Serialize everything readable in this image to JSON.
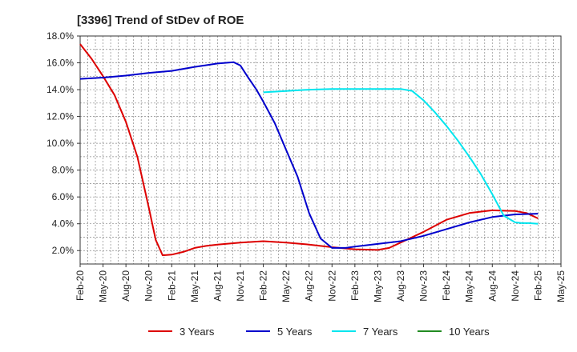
{
  "chart_data": {
    "type": "line",
    "title": "[3396]  Trend of StDev of ROE",
    "xlabel": "",
    "ylabel": "",
    "x_ticks": [
      "Feb-20",
      "May-20",
      "Aug-20",
      "Nov-20",
      "Feb-21",
      "May-21",
      "Aug-21",
      "Nov-21",
      "Feb-22",
      "May-22",
      "Aug-22",
      "Nov-22",
      "Feb-23",
      "May-23",
      "Aug-23",
      "Nov-23",
      "Feb-24",
      "May-24",
      "Aug-24",
      "Nov-24",
      "Feb-25",
      "May-25"
    ],
    "y_ticks": [
      "2.0%",
      "4.0%",
      "6.0%",
      "8.0%",
      "10.0%",
      "12.0%",
      "14.0%",
      "16.0%",
      "18.0%"
    ],
    "ylim": [
      1.0,
      18.0
    ],
    "grid": true,
    "legend_position": "bottom",
    "x_quarters_note": "x values are quarter indices matching x_ticks order",
    "series": [
      {
        "name": "3 Years",
        "color": "#dd0000",
        "x": [
          0,
          0.5,
          1,
          1.5,
          2,
          2.5,
          3,
          3.3,
          3.6,
          4,
          4.5,
          5,
          5.5,
          6,
          7,
          8,
          9,
          10,
          11,
          12,
          13,
          13.5,
          14,
          15,
          16,
          17,
          18,
          19,
          19.5,
          20
        ],
        "y": [
          17.4,
          16.3,
          15.0,
          13.6,
          11.6,
          9.0,
          5.2,
          2.8,
          1.65,
          1.7,
          1.9,
          2.2,
          2.35,
          2.45,
          2.6,
          2.7,
          2.6,
          2.45,
          2.25,
          2.1,
          2.05,
          2.2,
          2.6,
          3.4,
          4.3,
          4.8,
          5.0,
          4.95,
          4.8,
          4.4
        ]
      },
      {
        "name": "5 Years",
        "color": "#0000cc",
        "x": [
          0,
          1,
          2,
          3,
          4,
          5,
          6,
          6.7,
          7,
          7.3,
          7.7,
          8,
          8.5,
          9,
          9.5,
          10,
          10.5,
          11,
          11.3,
          11.6,
          12,
          13,
          14,
          15,
          16,
          17,
          18,
          19,
          20
        ],
        "y": [
          14.8,
          14.9,
          15.05,
          15.25,
          15.4,
          15.7,
          15.95,
          16.05,
          15.8,
          15.0,
          14.0,
          13.1,
          11.5,
          9.5,
          7.5,
          4.8,
          2.9,
          2.2,
          2.2,
          2.2,
          2.3,
          2.5,
          2.7,
          3.1,
          3.6,
          4.1,
          4.5,
          4.7,
          4.75
        ]
      },
      {
        "name": "7 Years",
        "color": "#00e5ee",
        "x": [
          8,
          9,
          10,
          11,
          12,
          13,
          14,
          14.5,
          15,
          15.5,
          16,
          16.5,
          17,
          17.5,
          18,
          18.5,
          19,
          19.3,
          19.6,
          20
        ],
        "y": [
          13.8,
          13.9,
          14.0,
          14.05,
          14.05,
          14.05,
          14.05,
          13.9,
          13.2,
          12.3,
          11.3,
          10.2,
          9.0,
          7.7,
          6.2,
          4.6,
          4.1,
          4.05,
          4.05,
          4.0
        ]
      },
      {
        "name": "10 Years",
        "color": "#228b22",
        "x": [],
        "y": []
      }
    ]
  }
}
